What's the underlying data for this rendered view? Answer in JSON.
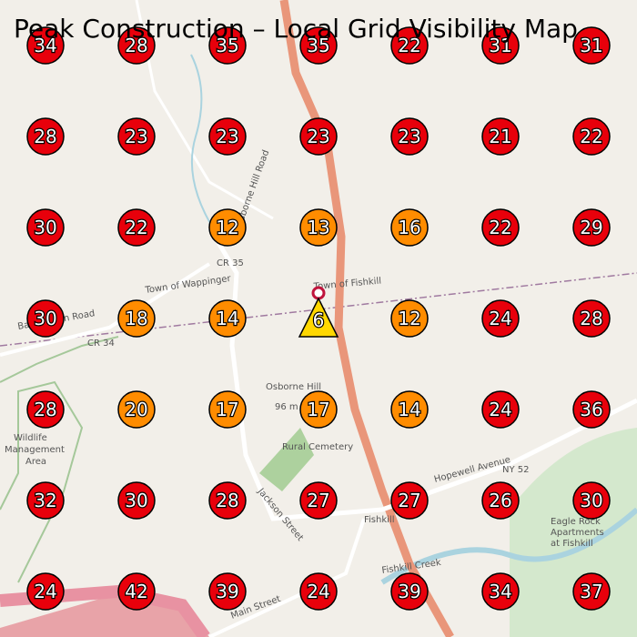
{
  "title": "Peak Construction – Local Grid Visibility Map",
  "map_labels": [
    "Town of Wappinger",
    "Town of Fishkill",
    "CR 35",
    "CR 34",
    "Baxtertown Road",
    "Osborne Hill Road",
    "Osborne Hill",
    "96 m",
    "Fishkill",
    "Rural Cemetery",
    "Hopewell Avenue",
    "NY 52",
    "Jackson Street",
    "Main Street",
    "Fishkill Creek",
    "Eagle Rock",
    "Apartments",
    "at Fishkill",
    "Wildlife",
    "Management",
    "Area"
  ],
  "markers": {
    "rows": [
      [
        {
          "value": 34,
          "color": "#e8000b"
        },
        {
          "value": 28,
          "color": "#e8000b"
        },
        {
          "value": 35,
          "color": "#e8000b"
        },
        {
          "value": 35,
          "color": "#e8000b"
        },
        {
          "value": 22,
          "color": "#e8000b"
        },
        {
          "value": 31,
          "color": "#e8000b"
        },
        {
          "value": 31,
          "color": "#e8000b"
        }
      ],
      [
        {
          "value": 28,
          "color": "#e8000b"
        },
        {
          "value": 23,
          "color": "#e8000b"
        },
        {
          "value": 23,
          "color": "#e8000b"
        },
        {
          "value": 23,
          "color": "#e8000b"
        },
        {
          "value": 23,
          "color": "#e8000b"
        },
        {
          "value": 21,
          "color": "#e8000b"
        },
        {
          "value": 22,
          "color": "#e8000b"
        }
      ],
      [
        {
          "value": 30,
          "color": "#e8000b"
        },
        {
          "value": 22,
          "color": "#e8000b"
        },
        {
          "value": 12,
          "color": "#ff8c00"
        },
        {
          "value": 13,
          "color": "#ff8c00"
        },
        {
          "value": 16,
          "color": "#ff8c00"
        },
        {
          "value": 22,
          "color": "#e8000b"
        },
        {
          "value": 29,
          "color": "#e8000b"
        }
      ],
      [
        {
          "value": 30,
          "color": "#e8000b"
        },
        {
          "value": 18,
          "color": "#ff8c00"
        },
        {
          "value": 14,
          "color": "#ff8c00"
        },
        {
          "value": 6,
          "color": "#ffd700",
          "shape": "triangle"
        },
        {
          "value": 12,
          "color": "#ff8c00"
        },
        {
          "value": 24,
          "color": "#e8000b"
        },
        {
          "value": 28,
          "color": "#e8000b"
        }
      ],
      [
        {
          "value": 28,
          "color": "#e8000b"
        },
        {
          "value": 20,
          "color": "#ff8c00"
        },
        {
          "value": 17,
          "color": "#ff8c00"
        },
        {
          "value": 17,
          "color": "#ff8c00"
        },
        {
          "value": 14,
          "color": "#ff8c00"
        },
        {
          "value": 24,
          "color": "#e8000b"
        },
        {
          "value": 36,
          "color": "#e8000b"
        }
      ],
      [
        {
          "value": 32,
          "color": "#e8000b"
        },
        {
          "value": 30,
          "color": "#e8000b"
        },
        {
          "value": 28,
          "color": "#e8000b"
        },
        {
          "value": 27,
          "color": "#e8000b"
        },
        {
          "value": 27,
          "color": "#e8000b"
        },
        {
          "value": 26,
          "color": "#e8000b"
        },
        {
          "value": 30,
          "color": "#e8000b"
        }
      ],
      [
        {
          "value": 24,
          "color": "#e8000b"
        },
        {
          "value": 42,
          "color": "#e8000b"
        },
        {
          "value": 39,
          "color": "#e8000b"
        },
        {
          "value": 24,
          "color": "#e8000b"
        },
        {
          "value": 39,
          "color": "#e8000b"
        },
        {
          "value": 34,
          "color": "#e8000b"
        },
        {
          "value": 37,
          "color": "#e8000b"
        }
      ]
    ]
  }
}
